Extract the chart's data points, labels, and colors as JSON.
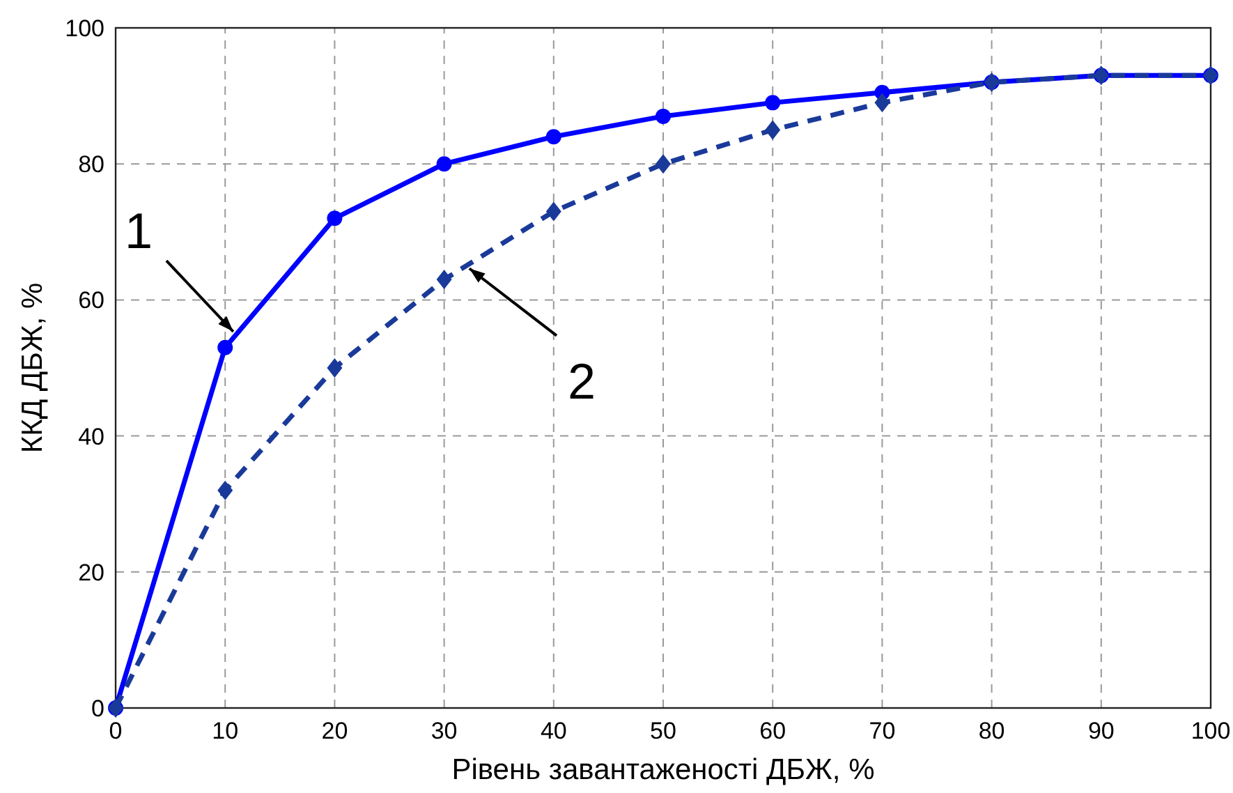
{
  "chart_data": {
    "type": "line",
    "xlabel": "Рівень завантаженості ДБЖ, %",
    "ylabel": "ККД ДБЖ, %",
    "x": [
      0,
      10,
      20,
      30,
      40,
      50,
      60,
      70,
      80,
      90,
      100
    ],
    "series": [
      {
        "name": "1",
        "color": "#0000ff",
        "marker": "circle",
        "line_style": "solid",
        "values": [
          0,
          53,
          72,
          80,
          84,
          87,
          89,
          90.5,
          92,
          93,
          93
        ]
      },
      {
        "name": "2",
        "color": "#1a3a9a",
        "marker": "diamond",
        "line_style": "dashed",
        "values": [
          0,
          32,
          50,
          63,
          73,
          80,
          85,
          89,
          92,
          93,
          93
        ]
      }
    ],
    "xlim": [
      0,
      100
    ],
    "xticks": [
      0,
      10,
      20,
      30,
      40,
      50,
      60,
      70,
      80,
      90,
      100
    ],
    "ylim": [
      0,
      100
    ],
    "yticks": [
      0,
      20,
      40,
      60,
      80,
      100
    ],
    "grid": true
  }
}
